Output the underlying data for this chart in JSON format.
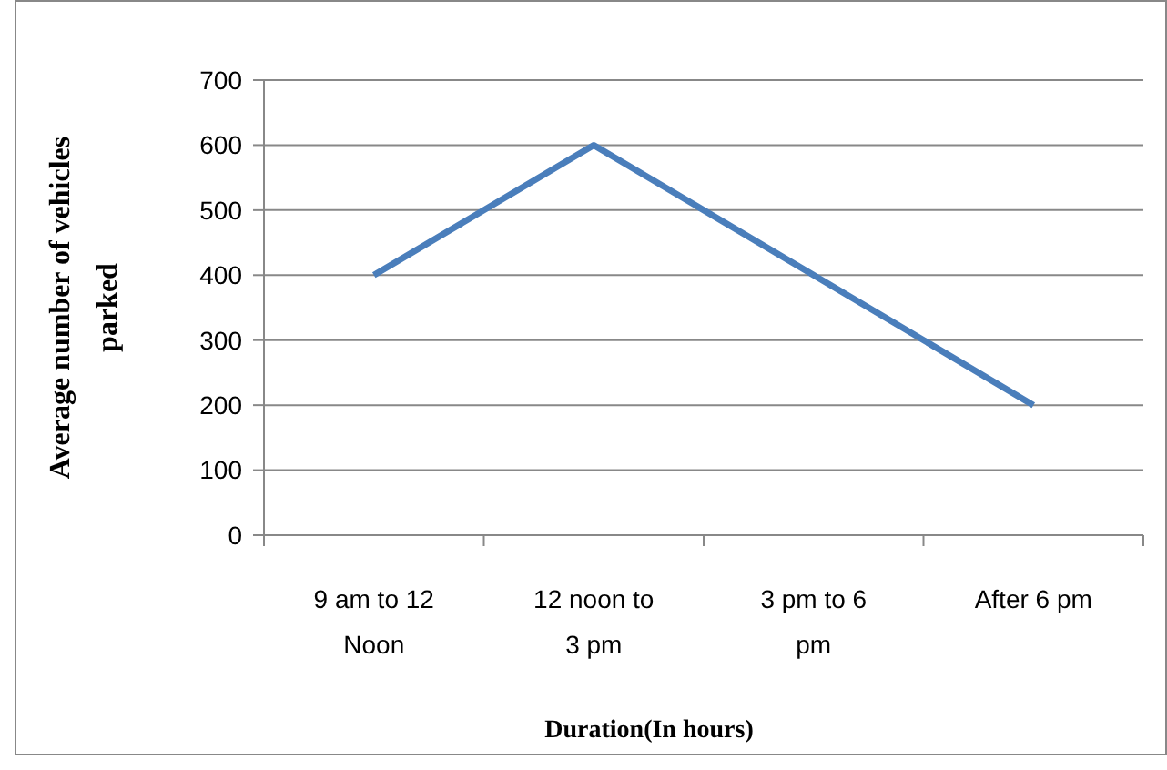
{
  "chart_data": {
    "type": "line",
    "xlabel": "Duration(In hours)",
    "ylabel": "Average number of vehicles parked",
    "categories": [
      "9 am to 12 Noon",
      "12 noon to 3 pm",
      "3 pm to 6 pm",
      "After 6 pm"
    ],
    "series": [
      {
        "color": "#4a7ebb",
        "values": [
          400,
          600,
          400,
          200
        ]
      }
    ],
    "ylim": [
      0,
      700
    ],
    "yticks": [
      0,
      100,
      200,
      300,
      400,
      500,
      600,
      700
    ],
    "grid": "y",
    "marker": "none",
    "line_style": "solid"
  }
}
